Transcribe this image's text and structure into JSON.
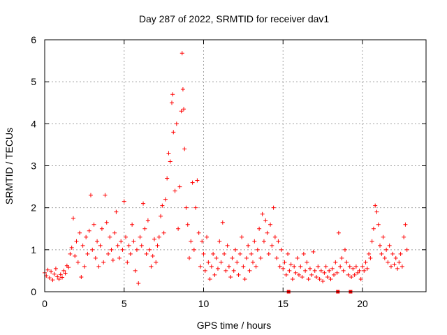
{
  "chart_data": {
    "type": "scatter",
    "title": "Day 287 of 2022, SRMTID for receiver dav1",
    "xlabel": "GPS time / hours",
    "ylabel": "SRMTID / TECUs",
    "xlim": [
      0,
      24
    ],
    "ylim": [
      0,
      6
    ],
    "xticks": [
      0,
      5,
      10,
      15,
      20
    ],
    "yticks": [
      0,
      1,
      2,
      3,
      4,
      5,
      6
    ],
    "grid": true,
    "marker": "plus",
    "colors": {
      "points": "#ff0000",
      "axis": "#000000",
      "grid": "#a0a0a0"
    },
    "series": [
      {
        "name": "SRMTID",
        "points": [
          [
            0.0,
            0.45
          ],
          [
            0.1,
            0.38
          ],
          [
            0.2,
            0.52
          ],
          [
            0.3,
            0.33
          ],
          [
            0.4,
            0.48
          ],
          [
            0.5,
            0.28
          ],
          [
            0.6,
            0.42
          ],
          [
            0.7,
            0.55
          ],
          [
            0.8,
            0.36
          ],
          [
            0.9,
            0.3
          ],
          [
            1.0,
            0.41
          ],
          [
            1.1,
            0.34
          ],
          [
            1.2,
            0.5
          ],
          [
            1.3,
            0.44
          ],
          [
            1.4,
            0.62
          ],
          [
            1.5,
            0.58
          ],
          [
            1.6,
            0.9
          ],
          [
            1.7,
            1.05
          ],
          [
            1.8,
            1.75
          ],
          [
            1.9,
            0.85
          ],
          [
            2.0,
            1.2
          ],
          [
            2.1,
            0.7
          ],
          [
            2.2,
            1.4
          ],
          [
            2.3,
            0.35
          ],
          [
            2.4,
            1.1
          ],
          [
            2.5,
            0.6
          ],
          [
            2.6,
            1.3
          ],
          [
            2.7,
            0.9
          ],
          [
            2.8,
            1.45
          ],
          [
            2.9,
            2.3
          ],
          [
            3.0,
            1.0
          ],
          [
            3.1,
            1.6
          ],
          [
            3.2,
            0.8
          ],
          [
            3.3,
            1.2
          ],
          [
            3.4,
            0.6
          ],
          [
            3.5,
            1.1
          ],
          [
            3.6,
            1.5
          ],
          [
            3.7,
            0.7
          ],
          [
            3.8,
            2.3
          ],
          [
            3.9,
            1.65
          ],
          [
            4.0,
            0.9
          ],
          [
            4.1,
            1.3
          ],
          [
            4.2,
            1.0
          ],
          [
            4.3,
            0.75
          ],
          [
            4.4,
            1.4
          ],
          [
            4.5,
            1.9
          ],
          [
            4.6,
            1.1
          ],
          [
            4.7,
            0.8
          ],
          [
            4.8,
            1.2
          ],
          [
            4.9,
            1.0
          ],
          [
            5.0,
            2.15
          ],
          [
            5.1,
            1.3
          ],
          [
            5.2,
            0.7
          ],
          [
            5.3,
            1.1
          ],
          [
            5.4,
            0.9
          ],
          [
            5.5,
            1.6
          ],
          [
            5.6,
            1.2
          ],
          [
            5.7,
            0.5
          ],
          [
            5.8,
            1.0
          ],
          [
            5.9,
            0.2
          ],
          [
            6.0,
            1.3
          ],
          [
            6.1,
            1.1
          ],
          [
            6.2,
            2.1
          ],
          [
            6.3,
            1.5
          ],
          [
            6.4,
            0.9
          ],
          [
            6.5,
            1.7
          ],
          [
            6.6,
            1.0
          ],
          [
            6.7,
            0.6
          ],
          [
            6.8,
            0.85
          ],
          [
            6.9,
            1.25
          ],
          [
            7.0,
            0.7
          ],
          [
            7.1,
            1.1
          ],
          [
            7.2,
            1.3
          ],
          [
            7.3,
            1.8
          ],
          [
            7.4,
            2.05
          ],
          [
            7.5,
            1.4
          ],
          [
            7.6,
            2.2
          ],
          [
            7.7,
            2.7
          ],
          [
            7.8,
            3.3
          ],
          [
            7.9,
            3.1
          ],
          [
            8.0,
            4.5
          ],
          [
            8.05,
            4.7
          ],
          [
            8.1,
            3.8
          ],
          [
            8.2,
            2.4
          ],
          [
            8.3,
            4.0
          ],
          [
            8.4,
            1.5
          ],
          [
            8.5,
            2.5
          ],
          [
            8.6,
            4.3
          ],
          [
            8.65,
            5.68
          ],
          [
            8.7,
            4.82
          ],
          [
            8.75,
            4.35
          ],
          [
            8.8,
            3.4
          ],
          [
            8.9,
            2.0
          ],
          [
            9.0,
            1.6
          ],
          [
            9.1,
            0.8
          ],
          [
            9.2,
            1.2
          ],
          [
            9.3,
            2.6
          ],
          [
            9.4,
            1.0
          ],
          [
            9.5,
            2.0
          ],
          [
            9.6,
            2.65
          ],
          [
            9.7,
            1.4
          ],
          [
            9.8,
            0.6
          ],
          [
            9.9,
            1.2
          ],
          [
            10.0,
            0.9
          ],
          [
            10.1,
            0.5
          ],
          [
            10.2,
            1.3
          ],
          [
            10.3,
            0.7
          ],
          [
            10.4,
            0.3
          ],
          [
            10.5,
            0.6
          ],
          [
            10.6,
            0.9
          ],
          [
            10.7,
            0.4
          ],
          [
            10.8,
            0.8
          ],
          [
            10.9,
            0.55
          ],
          [
            11.0,
            1.2
          ],
          [
            11.1,
            0.7
          ],
          [
            11.2,
            1.65
          ],
          [
            11.3,
            0.9
          ],
          [
            11.4,
            0.5
          ],
          [
            11.5,
            1.1
          ],
          [
            11.6,
            0.6
          ],
          [
            11.7,
            0.35
          ],
          [
            11.8,
            0.8
          ],
          [
            11.9,
            0.5
          ],
          [
            12.0,
            1.0
          ],
          [
            12.1,
            0.7
          ],
          [
            12.2,
            0.4
          ],
          [
            12.3,
            0.9
          ],
          [
            12.4,
            1.3
          ],
          [
            12.5,
            0.6
          ],
          [
            12.6,
            0.3
          ],
          [
            12.7,
            0.8
          ],
          [
            12.8,
            1.1
          ],
          [
            12.9,
            0.5
          ],
          [
            13.0,
            0.9
          ],
          [
            13.1,
            0.7
          ],
          [
            13.2,
            1.2
          ],
          [
            13.3,
            0.6
          ],
          [
            13.4,
            1.0
          ],
          [
            13.5,
            1.5
          ],
          [
            13.6,
            0.8
          ],
          [
            13.7,
            1.85
          ],
          [
            13.8,
            1.2
          ],
          [
            13.9,
            1.7
          ],
          [
            14.0,
            1.4
          ],
          [
            14.1,
            0.9
          ],
          [
            14.2,
            1.6
          ],
          [
            14.3,
            1.1
          ],
          [
            14.4,
            2.0
          ],
          [
            14.5,
            1.3
          ],
          [
            14.6,
            0.8
          ],
          [
            14.7,
            1.2
          ],
          [
            14.8,
            0.6
          ],
          [
            14.9,
            1.0
          ],
          [
            15.0,
            0.55
          ],
          [
            15.1,
            0.7
          ],
          [
            15.2,
            0.4
          ],
          [
            15.3,
            0.9
          ],
          [
            15.4,
            0.5
          ],
          [
            15.5,
            0.65
          ],
          [
            15.6,
            0.3
          ],
          [
            15.7,
            0.6
          ],
          [
            15.8,
            0.45
          ],
          [
            15.9,
            0.8
          ],
          [
            16.0,
            0.4
          ],
          [
            16.1,
            0.6
          ],
          [
            16.2,
            0.35
          ],
          [
            16.3,
            0.9
          ],
          [
            16.4,
            0.5
          ],
          [
            16.5,
            0.7
          ],
          [
            16.6,
            0.3
          ],
          [
            16.7,
            0.55
          ],
          [
            16.8,
            0.4
          ],
          [
            16.9,
            0.95
          ],
          [
            17.0,
            0.5
          ],
          [
            17.1,
            0.35
          ],
          [
            17.2,
            0.6
          ],
          [
            17.3,
            0.3
          ],
          [
            17.4,
            0.5
          ],
          [
            17.5,
            0.25
          ],
          [
            17.6,
            0.45
          ],
          [
            17.7,
            0.6
          ],
          [
            17.8,
            0.35
          ],
          [
            17.9,
            0.5
          ],
          [
            18.0,
            0.3
          ],
          [
            18.1,
            0.55
          ],
          [
            18.2,
            0.4
          ],
          [
            18.3,
            0.7
          ],
          [
            18.4,
            0.45
          ],
          [
            18.5,
            1.4
          ],
          [
            18.6,
            0.6
          ],
          [
            18.7,
            0.8
          ],
          [
            18.8,
            0.5
          ],
          [
            18.9,
            1.0
          ],
          [
            19.0,
            0.7
          ],
          [
            19.1,
            0.4
          ],
          [
            19.2,
            0.6
          ],
          [
            19.3,
            0.35
          ],
          [
            19.4,
            0.55
          ],
          [
            19.5,
            0.4
          ],
          [
            19.6,
            0.6
          ],
          [
            19.7,
            0.45
          ],
          [
            19.8,
            0.5
          ],
          [
            19.9,
            0.3
          ],
          [
            20.0,
            0.6
          ],
          [
            20.1,
            0.5
          ],
          [
            20.2,
            0.7
          ],
          [
            20.3,
            0.55
          ],
          [
            20.4,
            0.9
          ],
          [
            20.5,
            0.8
          ],
          [
            20.6,
            1.2
          ],
          [
            20.7,
            1.5
          ],
          [
            20.8,
            2.05
          ],
          [
            20.9,
            1.9
          ],
          [
            21.0,
            1.6
          ],
          [
            21.1,
            1.1
          ],
          [
            21.2,
            0.9
          ],
          [
            21.3,
            1.3
          ],
          [
            21.4,
            0.8
          ],
          [
            21.5,
            1.0
          ],
          [
            21.6,
            0.7
          ],
          [
            21.7,
            1.1
          ],
          [
            21.8,
            0.6
          ],
          [
            21.9,
            0.9
          ],
          [
            22.0,
            0.65
          ],
          [
            22.1,
            0.8
          ],
          [
            22.2,
            0.55
          ],
          [
            22.3,
            0.7
          ],
          [
            22.4,
            0.9
          ],
          [
            22.5,
            0.6
          ],
          [
            22.6,
            1.3
          ],
          [
            22.7,
            1.6
          ],
          [
            22.8,
            1.0
          ]
        ]
      }
    ],
    "zero_markers": [
      15.35,
      18.45,
      19.25
    ]
  }
}
